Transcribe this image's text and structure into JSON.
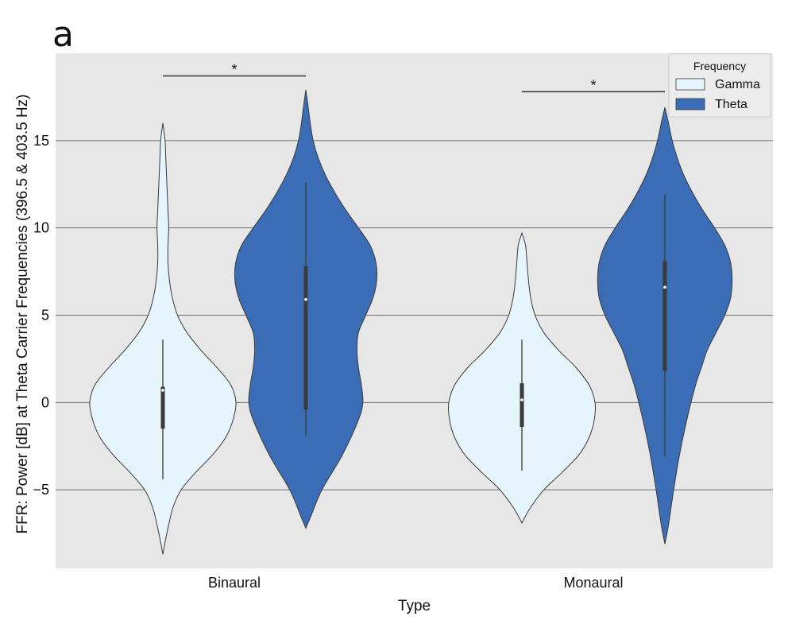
{
  "panel_label": "a",
  "chart_data": {
    "type": "violin",
    "xlabel": "Type",
    "ylabel": "FFR: Power [dB] at Theta Carrier Frequencies (396.5 & 403.5 Hz)",
    "categories": [
      "Binaural",
      "Monaural"
    ],
    "ylim": [
      -9.5,
      20
    ],
    "yticks": [
      -5,
      0,
      5,
      10,
      15
    ],
    "grid": "horizontal",
    "legend": {
      "title": "Frequency",
      "placement": "top-right",
      "entries": [
        "Gamma",
        "Theta"
      ]
    },
    "colors": {
      "Gamma": "#e6f4fb",
      "Theta": "#3b6db6",
      "background": "#e8e7e8"
    },
    "series": [
      {
        "name": "Gamma",
        "groups": [
          {
            "category": "Binaural",
            "min": -8.7,
            "max": 16.0,
            "q1": -1.5,
            "median": 0.7,
            "q3": 0.9,
            "whisker_low": -4.4,
            "whisker_high": 3.6,
            "density": [
              [
                -8.7,
                0
              ],
              [
                -8,
                0.03
              ],
              [
                -7,
                0.08
              ],
              [
                -6,
                0.14
              ],
              [
                -5,
                0.25
              ],
              [
                -4,
                0.45
              ],
              [
                -3,
                0.68
              ],
              [
                -2,
                0.86
              ],
              [
                -1,
                0.96
              ],
              [
                0,
                1.0
              ],
              [
                1,
                0.93
              ],
              [
                2,
                0.74
              ],
              [
                3,
                0.52
              ],
              [
                4,
                0.33
              ],
              [
                5,
                0.2
              ],
              [
                6,
                0.13
              ],
              [
                7,
                0.09
              ],
              [
                8,
                0.07
              ],
              [
                9,
                0.07
              ],
              [
                10,
                0.08
              ],
              [
                11,
                0.07
              ],
              [
                12,
                0.06
              ],
              [
                13,
                0.05
              ],
              [
                14,
                0.04
              ],
              [
                15,
                0.03
              ],
              [
                16,
                0
              ]
            ]
          },
          {
            "category": "Monaural",
            "min": -6.9,
            "max": 9.7,
            "q1": -1.4,
            "median": 0.15,
            "q3": 1.1,
            "whisker_low": -3.9,
            "whisker_high": 3.6,
            "density": [
              [
                -6.9,
                0
              ],
              [
                -6.5,
                0.05
              ],
              [
                -6,
                0.12
              ],
              [
                -5,
                0.3
              ],
              [
                -4,
                0.55
              ],
              [
                -3,
                0.78
              ],
              [
                -2,
                0.92
              ],
              [
                -1,
                0.99
              ],
              [
                0,
                1.0
              ],
              [
                1,
                0.92
              ],
              [
                2,
                0.74
              ],
              [
                3,
                0.5
              ],
              [
                4,
                0.3
              ],
              [
                5,
                0.18
              ],
              [
                6,
                0.12
              ],
              [
                7,
                0.09
              ],
              [
                8,
                0.07
              ],
              [
                9,
                0.05
              ],
              [
                9.7,
                0
              ]
            ]
          }
        ]
      },
      {
        "name": "Theta",
        "groups": [
          {
            "category": "Binaural",
            "min": -7.2,
            "max": 17.9,
            "q1": -0.4,
            "median": 5.9,
            "q3": 7.8,
            "whisker_low": -1.9,
            "whisker_high": 12.6,
            "density": [
              [
                -7.2,
                0
              ],
              [
                -6.5,
                0.07
              ],
              [
                -5,
                0.22
              ],
              [
                -3,
                0.5
              ],
              [
                -1,
                0.72
              ],
              [
                0,
                0.78
              ],
              [
                1,
                0.76
              ],
              [
                2,
                0.72
              ],
              [
                3,
                0.7
              ],
              [
                4,
                0.72
              ],
              [
                5,
                0.82
              ],
              [
                6,
                0.92
              ],
              [
                7,
                0.97
              ],
              [
                8,
                0.96
              ],
              [
                9,
                0.88
              ],
              [
                10,
                0.72
              ],
              [
                11,
                0.55
              ],
              [
                12,
                0.4
              ],
              [
                13,
                0.27
              ],
              [
                14,
                0.17
              ],
              [
                15,
                0.1
              ],
              [
                16,
                0.06
              ],
              [
                17,
                0.03
              ],
              [
                17.9,
                0
              ]
            ]
          },
          {
            "category": "Monaural",
            "min": -8.1,
            "max": 16.9,
            "q1": 1.8,
            "median": 6.6,
            "q3": 8.1,
            "whisker_low": -3.1,
            "whisker_high": 11.9,
            "density": [
              [
                -8.1,
                0
              ],
              [
                -7,
                0.05
              ],
              [
                -5,
                0.12
              ],
              [
                -3,
                0.2
              ],
              [
                -1,
                0.3
              ],
              [
                1,
                0.42
              ],
              [
                2,
                0.5
              ],
              [
                3,
                0.58
              ],
              [
                4,
                0.7
              ],
              [
                5,
                0.82
              ],
              [
                6,
                0.9
              ],
              [
                7,
                0.92
              ],
              [
                8,
                0.9
              ],
              [
                9,
                0.82
              ],
              [
                10,
                0.68
              ],
              [
                11,
                0.52
              ],
              [
                12,
                0.38
              ],
              [
                13,
                0.26
              ],
              [
                14,
                0.17
              ],
              [
                15,
                0.1
              ],
              [
                16,
                0.05
              ],
              [
                16.9,
                0
              ]
            ]
          }
        ]
      }
    ],
    "annotations": [
      {
        "text": "*",
        "category": "Binaural",
        "y": 18.7
      },
      {
        "text": "*",
        "category": "Monaural",
        "y": 17.8
      }
    ]
  }
}
